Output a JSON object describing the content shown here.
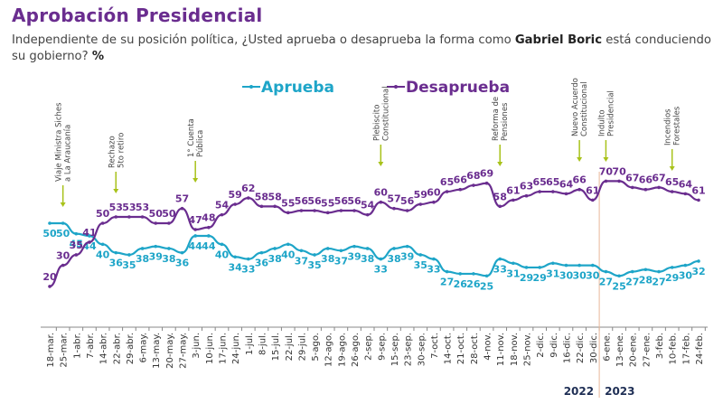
{
  "header": {
    "title": "Aprobación Presidencial",
    "subtitle_pre": "Independiente de su posición política, ¿Usted aprueba o desaprueba la forma como ",
    "subtitle_bold": "Gabriel Boric",
    "subtitle_post": " está conduciendo su gobierno? ",
    "subtitle_unit": "%"
  },
  "chart_data": {
    "type": "line",
    "title": "Aprobación Presidencial",
    "subtitle": "Independiente de su posición política, ¿Usted aprueba o desaprueba la forma como Gabriel Boric está conduciendo su gobierno? %",
    "xlabel": "",
    "ylabel": "%",
    "ylim": [
      20,
      70
    ],
    "grid": false,
    "legend": "top-center",
    "categories": [
      "18-mar.",
      "25-mar.",
      "1-abr.",
      "7-abr.",
      "14-abr.",
      "22-abr.",
      "29-abr.",
      "6-may.",
      "13-may.",
      "20-may.",
      "27-may.",
      "3-jun.",
      "10-jun.",
      "17-jun.",
      "24-jun.",
      "1-jul.",
      "8-jul.",
      "15-jul.",
      "22-jul.",
      "29-jul.",
      "5-ago.",
      "12-ago.",
      "19-ago.",
      "26-ago.",
      "2-sep.",
      "9-sep.",
      "15-sep.",
      "23-sep.",
      "30-sep.",
      "7-oct.",
      "14-oct.",
      "21-oct.",
      "28-oct.",
      "4-nov.",
      "11-nov.",
      "18-nov.",
      "25-nov.",
      "2-dic.",
      "9-dic.",
      "16-dic.",
      "22-dic.",
      "30-dic.",
      "6-ene.",
      "13-ene.",
      "20-ene.",
      "27-ene.",
      "3-feb.",
      "10-feb.",
      "17-feb.",
      "24-feb."
    ],
    "series": [
      {
        "name": "Aprueba",
        "color": "#1ea5c8",
        "values": [
          50,
          50,
          45,
          44,
          40,
          36,
          35,
          38,
          39,
          38,
          36,
          44,
          44,
          40,
          34,
          33,
          36,
          38,
          40,
          37,
          35,
          38,
          37,
          39,
          38,
          33,
          38,
          39,
          35,
          33,
          27,
          26,
          26,
          25,
          33,
          31,
          29,
          29,
          31,
          30,
          30,
          30,
          27,
          25,
          27,
          28,
          27,
          29,
          30,
          32
        ]
      },
      {
        "name": "Desaprueba",
        "color": "#6a2d8f",
        "values": [
          20,
          30,
          35,
          41,
          50,
          53,
          53,
          53,
          50,
          50,
          57,
          47,
          48,
          54,
          59,
          62,
          58,
          58,
          55,
          56,
          56,
          55,
          56,
          56,
          54,
          60,
          57,
          56,
          59,
          60,
          65,
          66,
          68,
          69,
          58,
          61,
          63,
          65,
          65,
          64,
          66,
          61,
          70,
          70,
          67,
          66,
          67,
          65,
          64,
          61
        ]
      }
    ],
    "annotations": [
      {
        "index": 1,
        "lines": [
          "Viaje Ministra Siches",
          "a La Araucanía"
        ]
      },
      {
        "index": 5,
        "lines": [
          "Rechazo",
          "5to retiro"
        ]
      },
      {
        "index": 11,
        "lines": [
          "1° Cuenta",
          "Pública"
        ]
      },
      {
        "index": 25,
        "lines": [
          "Plebiscito",
          "Constitucional"
        ]
      },
      {
        "index": 34,
        "lines": [
          "Reforma de",
          "Pensiones"
        ]
      },
      {
        "index": 40,
        "lines": [
          "Nuevo Acuerdo",
          "Constitucional"
        ]
      },
      {
        "index": 42,
        "lines": [
          "Indulto",
          "Presidencial"
        ]
      },
      {
        "index": 47,
        "lines": [
          "Incendios",
          "Forestales"
        ]
      }
    ],
    "year_labels": [
      "2022",
      "2023"
    ],
    "year_divider_after_index": 41
  }
}
